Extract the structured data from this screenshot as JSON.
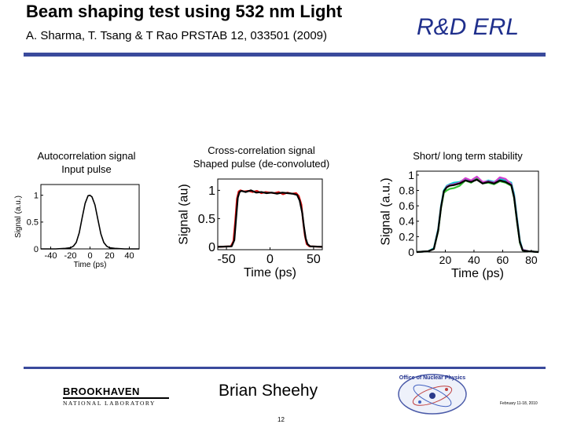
{
  "header": {
    "title": "Beam shaping test using 532 nm Light",
    "citation": "A. Sharma, T. Tsang & T Rao PRSTAB 12, 033501 (2009)",
    "org": "R&D ERL"
  },
  "captions": {
    "left": [
      "Autocorrelation signal",
      "Input pulse"
    ],
    "middle": [
      "Cross-correlation signal",
      "Shaped pulse (de-convoluted)"
    ],
    "right": [
      "Short/ long term stability"
    ]
  },
  "colors": {
    "accent": "#1f2f8c",
    "rule": "#3a4a9c",
    "trace_red": "#e01010",
    "trace_black": "#000000"
  },
  "chart_data": [
    {
      "type": "line",
      "title": "",
      "xlabel": "Time (ps)",
      "ylabel": "Signal (a.u.)",
      "xlim": [
        -50,
        50
      ],
      "ylim": [
        0,
        1.2
      ],
      "xticks": [
        "-40",
        "-20",
        "0",
        "20",
        "40"
      ],
      "yticks": [
        "0",
        "0.5",
        "1"
      ],
      "series": [
        {
          "color": "#000000",
          "x": [
            -50,
            -35,
            -25,
            -20,
            -17,
            -14,
            -11,
            -8,
            -5,
            -2,
            0,
            2,
            5,
            8,
            11,
            14,
            17,
            20,
            25,
            35,
            50
          ],
          "y": [
            0,
            0,
            0.01,
            0.02,
            0.05,
            0.12,
            0.3,
            0.58,
            0.85,
            0.99,
            1.0,
            0.97,
            0.82,
            0.55,
            0.28,
            0.12,
            0.05,
            0.02,
            0.01,
            0,
            0
          ]
        }
      ]
    },
    {
      "type": "line",
      "title": "",
      "xlabel": "Time (ps)",
      "ylabel": "Signal (au)",
      "xlim": [
        -60,
        60
      ],
      "ylim": [
        -0.05,
        1.2
      ],
      "xticks": [
        "-50",
        "0",
        "50"
      ],
      "yticks": [
        "0",
        "0.5",
        "1"
      ],
      "series": [
        {
          "color": "#e01010",
          "x": [
            -60,
            -45,
            -42,
            -40,
            -38,
            -36,
            -34,
            -30,
            -25,
            -20,
            -15,
            -10,
            -5,
            0,
            5,
            10,
            15,
            20,
            25,
            30,
            33,
            36,
            38,
            40,
            42,
            45,
            60
          ],
          "y": [
            0,
            0.01,
            0.1,
            0.45,
            0.85,
            0.98,
            1.0,
            0.98,
            0.99,
            0.97,
            0.99,
            0.95,
            0.97,
            0.96,
            0.95,
            0.97,
            0.93,
            0.96,
            0.94,
            0.95,
            0.9,
            0.75,
            0.45,
            0.2,
            0.05,
            0.01,
            0
          ]
        },
        {
          "color": "#000000",
          "x": [
            -60,
            -44,
            -41,
            -39,
            -37,
            -35,
            -33,
            -28,
            -22,
            -16,
            -10,
            -4,
            2,
            8,
            14,
            20,
            26,
            31,
            34,
            37,
            39,
            41,
            43,
            46,
            60
          ],
          "y": [
            0,
            0.01,
            0.12,
            0.5,
            0.87,
            0.97,
            0.99,
            0.97,
            1.0,
            0.96,
            0.97,
            0.95,
            0.96,
            0.94,
            0.96,
            0.95,
            0.94,
            0.92,
            0.82,
            0.6,
            0.35,
            0.15,
            0.05,
            0.01,
            0
          ]
        }
      ]
    },
    {
      "type": "line",
      "title": "",
      "xlabel": "Time (ps)",
      "ylabel": "Signal (a.u.)",
      "xlim": [
        0,
        85
      ],
      "ylim": [
        0,
        1.05
      ],
      "xticks": [
        "20",
        "40",
        "60",
        "80"
      ],
      "yticks": [
        "0",
        "0.2",
        "0.4",
        "0.6",
        "0.8",
        "1"
      ],
      "series": [
        {
          "color": "#00c8c8",
          "x": [
            0,
            8,
            12,
            15,
            17,
            19,
            21,
            23,
            26,
            30,
            34,
            38,
            42,
            46,
            50,
            54,
            58,
            62,
            66,
            68,
            70,
            72,
            74,
            78,
            85
          ],
          "y": [
            0,
            0.01,
            0.05,
            0.3,
            0.6,
            0.8,
            0.86,
            0.88,
            0.9,
            0.91,
            0.95,
            0.92,
            0.96,
            0.9,
            0.93,
            0.91,
            0.95,
            0.93,
            0.9,
            0.75,
            0.45,
            0.15,
            0.03,
            0.01,
            0
          ]
        },
        {
          "color": "#d040d0",
          "x": [
            0,
            8,
            12,
            15,
            17,
            19,
            21,
            23,
            26,
            30,
            34,
            38,
            42,
            46,
            50,
            54,
            58,
            62,
            66,
            68,
            70,
            72,
            74,
            78,
            85
          ],
          "y": [
            0,
            0.01,
            0.04,
            0.28,
            0.58,
            0.78,
            0.85,
            0.87,
            0.88,
            0.9,
            0.96,
            0.93,
            0.98,
            0.91,
            0.92,
            0.9,
            0.97,
            0.95,
            0.88,
            0.72,
            0.42,
            0.13,
            0.03,
            0.01,
            0
          ]
        },
        {
          "color": "#30c030",
          "x": [
            0,
            8,
            12,
            15,
            17,
            19,
            21,
            23,
            26,
            30,
            34,
            38,
            42,
            46,
            50,
            54,
            58,
            62,
            66,
            68,
            70,
            72,
            74,
            78,
            85
          ],
          "y": [
            0,
            0.01,
            0.04,
            0.27,
            0.57,
            0.77,
            0.8,
            0.82,
            0.83,
            0.86,
            0.93,
            0.9,
            0.95,
            0.89,
            0.9,
            0.88,
            0.92,
            0.9,
            0.86,
            0.7,
            0.4,
            0.12,
            0.02,
            0.01,
            0
          ]
        },
        {
          "color": "#000000",
          "x": [
            0,
            8,
            12,
            15,
            17,
            19,
            21,
            23,
            26,
            30,
            34,
            38,
            42,
            46,
            50,
            54,
            58,
            62,
            66,
            68,
            70,
            72,
            74,
            78,
            85
          ],
          "y": [
            0,
            0.01,
            0.04,
            0.28,
            0.58,
            0.79,
            0.84,
            0.86,
            0.87,
            0.89,
            0.93,
            0.91,
            0.94,
            0.89,
            0.91,
            0.89,
            0.93,
            0.91,
            0.87,
            0.71,
            0.41,
            0.13,
            0.02,
            0.01,
            0
          ]
        }
      ]
    }
  ],
  "footer": {
    "logo_left": [
      "BROOKHAVEN",
      "NATIONAL LABORATORY"
    ],
    "author": "Brian Sheehy",
    "logo_center": "Office of Nuclear Physics",
    "date": "February 11-18, 2010",
    "page": "12"
  }
}
